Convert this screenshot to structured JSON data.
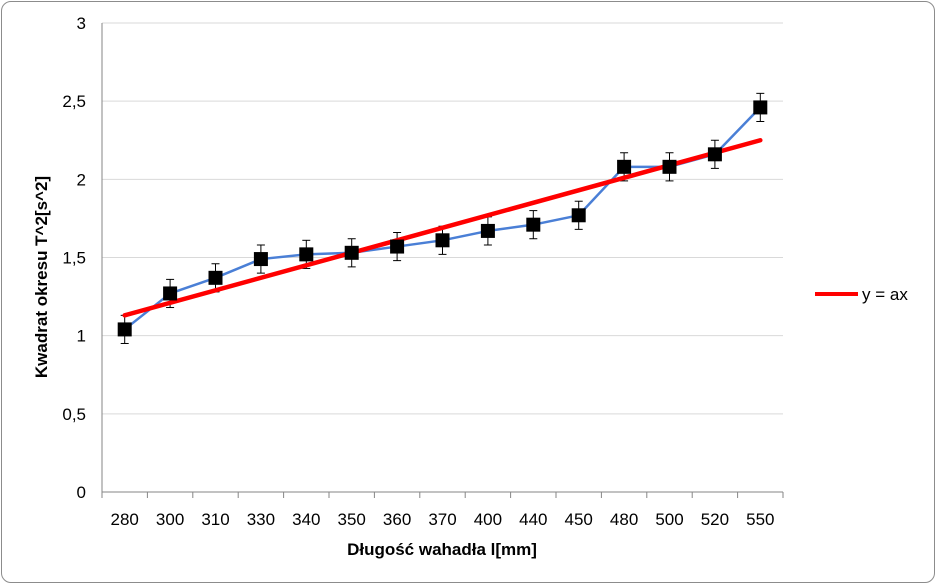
{
  "chart_data": {
    "type": "line",
    "title": "",
    "xlabel": "Długość wahadła l[mm]",
    "ylabel": "Kwadrat okresu T^2[s^2]",
    "categories": [
      "280",
      "300",
      "310",
      "330",
      "340",
      "350",
      "360",
      "370",
      "400",
      "440",
      "450",
      "480",
      "500",
      "520",
      "550"
    ],
    "y_ticks": [
      "0",
      "0,5",
      "1",
      "1,5",
      "2",
      "2,5",
      "3"
    ],
    "ylim": [
      0,
      3
    ],
    "grid": "horizontal",
    "legend_position": "right",
    "series": [
      {
        "type": "line-markers",
        "values": [
          1.04,
          1.27,
          1.37,
          1.49,
          1.52,
          1.53,
          1.57,
          1.61,
          1.67,
          1.71,
          1.77,
          2.08,
          2.08,
          2.16,
          2.46
        ],
        "error": 0.09,
        "line_color": "#4a7fd6",
        "marker": "square",
        "marker_color": "#000000"
      },
      {
        "name": "y = ax",
        "type": "fit-line",
        "start_value": 1.13,
        "end_value": 2.25,
        "color": "#ff0000"
      }
    ]
  }
}
